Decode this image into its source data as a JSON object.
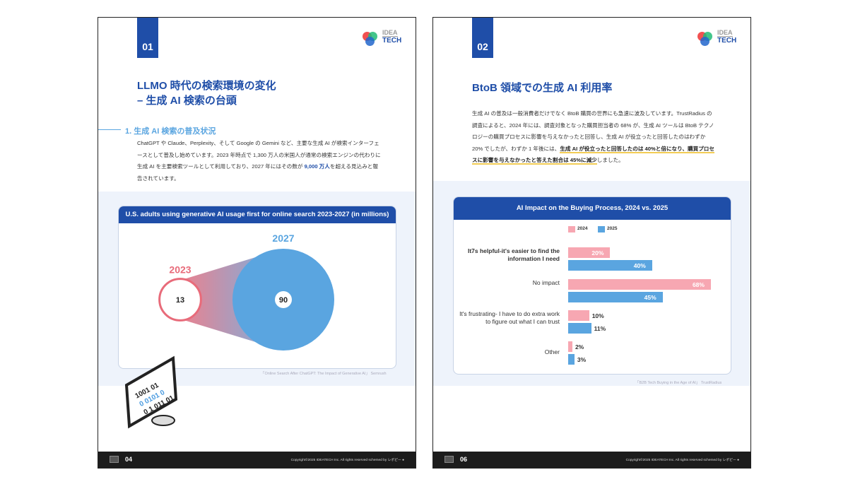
{
  "page1": {
    "tab": "01",
    "logo": {
      "line1": "IDEA",
      "line2": "TECH"
    },
    "title_line1": "LLMO 時代の検索環境の変化",
    "title_line2": "– 生成 AI 検索の台頭",
    "subheading": "1. 生成 AI 検索の普及状況",
    "body_before": "ChatGPT や Claude、Perplexity、そして Google の Gemini など、主要な生成 AI が検索インターフェースとして普及し始めています。2023 年時点で 1,300 万人の米国人が通常の検索エンジンの代わりに生成 AI を主要検索ツールとして利用しており、2027 年にはその数が ",
    "body_highlight": "9,000 万人",
    "body_after": "を超える見込みと報告されています。",
    "source": "「Online Search After ChatGPT: The Impact of Generative AI」 Semrush",
    "footer": {
      "page": "04",
      "copyright": "Copyright©2025 IDEATECH Inc. All rights reserved   schemed by レポピー ●"
    }
  },
  "page2": {
    "tab": "02",
    "logo": {
      "line1": "IDEA",
      "line2": "TECH"
    },
    "title": "BtoB 領域での生成 AI 利用率",
    "body_before": "生成 AI の普及は一般消費者だけでなく BtoB 購買の世界にも急速に波及しています。TrustRadius の調査によると、2024 年には、調査対象となった購買担当者の 68% が、生成 AI ツールは BtoB テクノロジーの購買プロセスに影響を与えなかったと回答し、生成 AI が役立ったと回答したのはわずか 20% でしたが、わずか 1 年後には、",
    "body_highlight": "生成 AI が役立ったと回答したのは 40%と倍になり、購買プロセスに影響を与えなかったと答えた割合は 45%に減少",
    "body_after": "しました。",
    "source": "「B2B Tech Buying in the Age of AI」 TrustRadius",
    "footer": {
      "page": "06",
      "copyright": "Copyright©2025 IDEATECH Inc. All rights reserved   schemed by レポピー ●"
    }
  },
  "chart_data": [
    {
      "type": "bubble",
      "title": "U.S. adults using generative AI usage first for online search 2023-2027 (in millions)",
      "categories": [
        "2023",
        "2027"
      ],
      "values": [
        13,
        90
      ],
      "colors": {
        "2023": "#e86b7a",
        "2027": "#5aa5e0"
      }
    },
    {
      "type": "bar",
      "orientation": "horizontal",
      "title": "AI Impact on the Buying Process, 2024 vs. 2025",
      "categories": [
        "It7s helpful-it's easier to find the information I need",
        "No impact",
        "It's frustrating- I have to do extra work to figure out what I can trust",
        "Other"
      ],
      "series": [
        {
          "name": "2024",
          "values": [
            20,
            68,
            10,
            2
          ],
          "color": "#f7a7b2"
        },
        {
          "name": "2025",
          "values": [
            40,
            45,
            11,
            3
          ],
          "color": "#5aa5e0"
        }
      ],
      "unit": "%",
      "legend": "top"
    }
  ]
}
